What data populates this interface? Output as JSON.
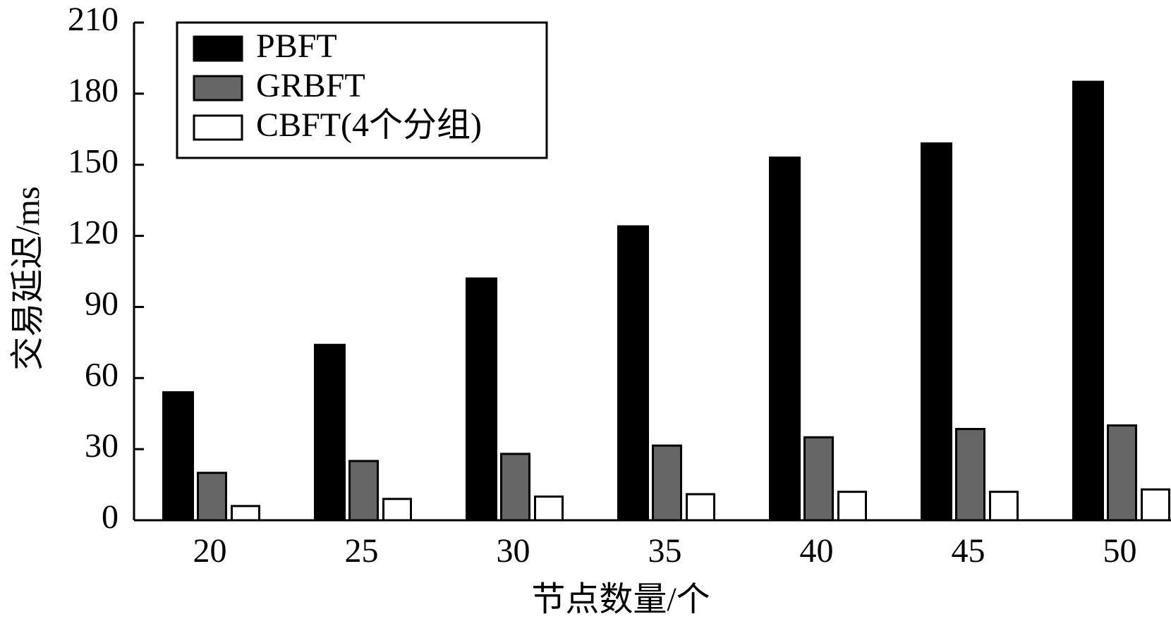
{
  "chart_data": {
    "type": "bar",
    "x_label": "节点数量/个",
    "y_label": "交易延迟/ms",
    "categories": [
      "20",
      "25",
      "30",
      "35",
      "40",
      "45",
      "50"
    ],
    "series": [
      {
        "name": "PBFT",
        "color": "#000000",
        "values": [
          54,
          74,
          102,
          124,
          153,
          159,
          185
        ]
      },
      {
        "name": "GRBFT",
        "color": "#666666",
        "values": [
          20,
          25,
          28,
          31.5,
          35,
          38.5,
          40
        ]
      },
      {
        "name": "CBFT(4个分组)",
        "color": "#ffffff",
        "values": [
          6,
          9,
          10,
          11,
          12,
          12,
          13
        ]
      }
    ],
    "ylim": [
      0,
      210
    ],
    "yticks": [
      0,
      30,
      60,
      90,
      120,
      150,
      180,
      210
    ],
    "legend": "upper left"
  }
}
